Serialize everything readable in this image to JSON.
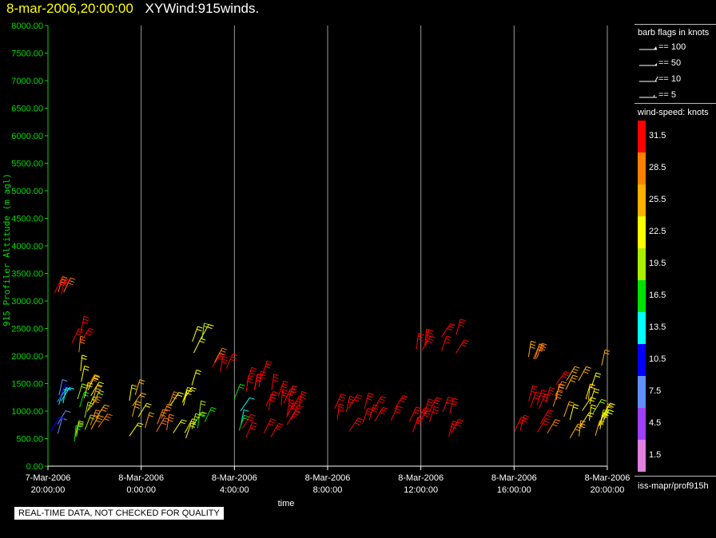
{
  "title": {
    "date": "8-mar-2006,20:00:00",
    "name": "XYWind:915winds."
  },
  "chart_data": {
    "type": "scatter",
    "ylabel": "915 Profiler Altitude (m agl)",
    "xlabel": "time",
    "ylim": [
      0,
      8000
    ],
    "yticks": [
      "0.00",
      "500.00",
      "1000.00",
      "1500.00",
      "2000.00",
      "2500.00",
      "3000.00",
      "3500.00",
      "4000.00",
      "4500.00",
      "5000.00",
      "5500.00",
      "6000.00",
      "6500.00",
      "7000.00",
      "7500.00",
      "8000.00"
    ],
    "xlim_hours": [
      0,
      24
    ],
    "xticks": [
      {
        "hour": 0,
        "date": "7-Mar-2006",
        "time": "20:00:00"
      },
      {
        "hour": 4,
        "date": "8-Mar-2006",
        "time": "0:00:00"
      },
      {
        "hour": 8,
        "date": "8-Mar-2006",
        "time": "4:00:00"
      },
      {
        "hour": 12,
        "date": "8-Mar-2006",
        "time": "8:00:00"
      },
      {
        "hour": 16,
        "date": "8-Mar-2006",
        "time": "12:00:00"
      },
      {
        "hour": 20,
        "date": "8-Mar-2006",
        "time": "16:00:00"
      },
      {
        "hour": 24,
        "date": "8-Mar-2006",
        "time": "20:00:00"
      }
    ],
    "wind_clusters": [
      {
        "start": 0.0,
        "end": 0.6,
        "alt_min": 400,
        "alt_max": 1500,
        "speed": 8
      },
      {
        "start": 0.4,
        "end": 1.0,
        "alt_min": 800,
        "alt_max": 1400,
        "speed": 12
      },
      {
        "start": 0.8,
        "end": 1.6,
        "alt_min": 400,
        "alt_max": 1300,
        "speed": 18
      },
      {
        "start": 1.2,
        "end": 2.0,
        "alt_min": 600,
        "alt_max": 1900,
        "speed": 22
      },
      {
        "start": 1.6,
        "end": 2.4,
        "alt_min": 500,
        "alt_max": 1700,
        "speed": 28
      },
      {
        "start": 0.8,
        "end": 1.7,
        "alt_min": 2000,
        "alt_max": 2500,
        "speed": 30
      },
      {
        "start": 0.2,
        "end": 0.9,
        "alt_min": 3100,
        "alt_max": 3200,
        "speed": 30
      },
      {
        "start": 3.4,
        "end": 4.4,
        "alt_min": 450,
        "alt_max": 1300,
        "speed": 24
      },
      {
        "start": 4.4,
        "end": 5.4,
        "alt_min": 450,
        "alt_max": 1100,
        "speed": 29
      },
      {
        "start": 5.2,
        "end": 6.2,
        "alt_min": 500,
        "alt_max": 1500,
        "speed": 22
      },
      {
        "start": 6.0,
        "end": 6.8,
        "alt_min": 600,
        "alt_max": 1400,
        "speed": 18
      },
      {
        "start": 6.0,
        "end": 6.8,
        "alt_min": 2000,
        "alt_max": 2400,
        "speed": 22
      },
      {
        "start": 7.0,
        "end": 7.8,
        "alt_min": 1600,
        "alt_max": 1900,
        "speed": 30
      },
      {
        "start": 7.8,
        "end": 8.4,
        "alt_min": 600,
        "alt_max": 1300,
        "speed": 16
      },
      {
        "start": 8.3,
        "end": 10.3,
        "alt_min": 500,
        "alt_max": 1700,
        "speed": 32
      },
      {
        "start": 10.3,
        "end": 11.0,
        "alt_min": 600,
        "alt_max": 1400,
        "speed": 32
      },
      {
        "start": 12.0,
        "end": 13.0,
        "alt_min": 500,
        "alt_max": 1100,
        "speed": 32
      },
      {
        "start": 13.0,
        "end": 16.5,
        "alt_min": 550,
        "alt_max": 1050,
        "speed": 33
      },
      {
        "start": 16.5,
        "end": 17.5,
        "alt_min": 500,
        "alt_max": 1000,
        "speed": 32
      },
      {
        "start": 15.8,
        "end": 16.5,
        "alt_min": 2000,
        "alt_max": 2200,
        "speed": 32
      },
      {
        "start": 16.8,
        "end": 18.0,
        "alt_min": 2000,
        "alt_max": 2400,
        "speed": 32
      },
      {
        "start": 19.8,
        "end": 21.3,
        "alt_min": 500,
        "alt_max": 1200,
        "speed": 32
      },
      {
        "start": 21.2,
        "end": 22.0,
        "alt_min": 500,
        "alt_max": 1500,
        "speed": 29
      },
      {
        "start": 22.0,
        "end": 22.8,
        "alt_min": 500,
        "alt_max": 1700,
        "speed": 25
      },
      {
        "start": 22.7,
        "end": 23.8,
        "alt_min": 450,
        "alt_max": 1300,
        "speed": 21
      },
      {
        "start": 23.0,
        "end": 23.9,
        "alt_min": 500,
        "alt_max": 2000,
        "speed": 23
      },
      {
        "start": 20.5,
        "end": 21.0,
        "alt_min": 1800,
        "alt_max": 2000,
        "speed": 28
      }
    ]
  },
  "legend": {
    "flags_title": "barb flags in knots",
    "flags": [
      {
        "label": "== 100",
        "kind": "pennant"
      },
      {
        "label": "== 50",
        "kind": "half-pennant"
      },
      {
        "label": "== 10",
        "kind": "barb"
      },
      {
        "label": "== 5",
        "kind": "half-barb"
      }
    ],
    "speed_title": "wind-speed: knots",
    "colorbar": [
      {
        "label": "31.5",
        "color": "#ff0000"
      },
      {
        "label": "28.5",
        "color": "#ff8000"
      },
      {
        "label": "25.5",
        "color": "#ffb000"
      },
      {
        "label": "22.5",
        "color": "#ffff00"
      },
      {
        "label": "19.5",
        "color": "#a8f000"
      },
      {
        "label": "16.5",
        "color": "#00e000"
      },
      {
        "label": "13.5",
        "color": "#00ffff"
      },
      {
        "label": "10.5",
        "color": "#0000ff"
      },
      {
        "label": "7.5",
        "color": "#6090ff"
      },
      {
        "label": "4.5",
        "color": "#a040ff"
      },
      {
        "label": "1.5",
        "color": "#e080e0"
      }
    ],
    "footer": "iss-mapr/prof915h"
  },
  "notice": "REAL-TIME DATA, NOT CHECKED FOR QUALITY"
}
